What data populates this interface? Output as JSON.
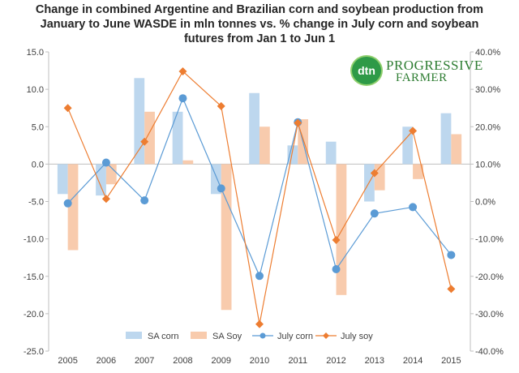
{
  "title_lines": [
    "Change in combined Argentine and Brazilian corn and soybean production from",
    "January to June WASDE in mln tonnes vs. % change in July corn and soybean",
    "futures from Jan 1 to Jun 1"
  ],
  "logo": {
    "badge_text": "dtn",
    "line1": "PROGRESSIVE",
    "line2": "FARMER"
  },
  "chart_data": {
    "type": "bar",
    "title": "Change in combined Argentine and Brazilian corn and soybean production from January to June WASDE in mln tonnes vs. % change in July corn and soybean futures from Jan 1 to Jun 1",
    "categories": [
      "2005",
      "2006",
      "2007",
      "2008",
      "2009",
      "2010",
      "2011",
      "2012",
      "2013",
      "2014",
      "2015"
    ],
    "ylim_left": [
      -25,
      15
    ],
    "yticks_left": [
      "15.0",
      "10.0",
      "5.0",
      "0.0",
      "-5.0",
      "-10.0",
      "-15.0",
      "-20.0",
      "-25.0"
    ],
    "ylim_right": [
      -40,
      40
    ],
    "yticks_right": [
      "40.0%",
      "30.0%",
      "20.0%",
      "10.0%",
      "0.0%",
      "-10.0%",
      "-20.0%",
      "-30.0%",
      "-40.0%"
    ],
    "grid": false,
    "legend_position": "bottom",
    "series": [
      {
        "name": "SA corn",
        "type": "bar",
        "axis": "left",
        "color": "#bdd7ee",
        "values": [
          -4.0,
          -4.2,
          11.5,
          7.0,
          -4.0,
          9.5,
          2.5,
          3.0,
          -5.0,
          5.0,
          6.8
        ]
      },
      {
        "name": "SA Soy",
        "type": "bar",
        "axis": "left",
        "color": "#f8cbad",
        "values": [
          -11.5,
          -2.7,
          7.0,
          0.5,
          -19.5,
          5.0,
          6.0,
          -17.5,
          -3.5,
          -2.0,
          4.0
        ]
      },
      {
        "name": "July corn",
        "type": "line",
        "axis": "right",
        "color": "#5b9bd5",
        "marker": "circle",
        "values": [
          -0.5,
          10.4,
          0.3,
          27.6,
          3.5,
          -19.9,
          21.2,
          -18.1,
          -3.2,
          -1.5,
          -14.3
        ]
      },
      {
        "name": "July soy",
        "type": "line",
        "axis": "right",
        "color": "#ed7d31",
        "marker": "diamond",
        "values": [
          25.0,
          0.7,
          16.0,
          34.8,
          25.5,
          -32.8,
          21.0,
          -10.3,
          7.6,
          18.9,
          -23.4
        ]
      }
    ]
  }
}
